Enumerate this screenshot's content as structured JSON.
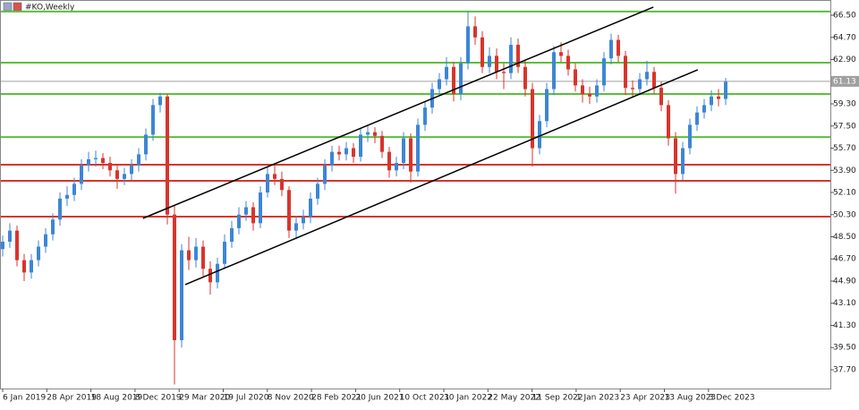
{
  "chart_data": {
    "type": "candlestick",
    "title": "#KO,Weekly",
    "ylim": [
      36.17,
      67.74
    ],
    "yticks": [
      {
        "value": 66.5,
        "label": "66.50"
      },
      {
        "value": 64.7,
        "label": "64.70"
      },
      {
        "value": 62.9,
        "label": "62.90"
      },
      {
        "value": 59.3,
        "label": "59.30"
      },
      {
        "value": 57.5,
        "label": "57.50"
      },
      {
        "value": 55.7,
        "label": "55.70"
      },
      {
        "value": 53.9,
        "label": "53.90"
      },
      {
        "value": 52.1,
        "label": "52.10"
      },
      {
        "value": 50.3,
        "label": "50.30"
      },
      {
        "value": 48.5,
        "label": "48.50"
      },
      {
        "value": 46.7,
        "label": "46.70"
      },
      {
        "value": 44.9,
        "label": "44.90"
      },
      {
        "value": 43.1,
        "label": "43.10"
      },
      {
        "value": 41.3,
        "label": "41.30"
      },
      {
        "value": 39.5,
        "label": "39.50"
      },
      {
        "value": 37.7,
        "label": "37.70"
      }
    ],
    "current_price": 61.13,
    "categories": [
      "6 Jan 2019",
      "28 Apr 2019",
      "18 Aug 2019",
      "8 Dec 2019",
      "29 Mar 2020",
      "19 Jul 2020",
      "8 Nov 2020",
      "28 Feb 2021",
      "20 Jun 2021",
      "10 Oct 2021",
      "30 Jan 2022",
      "22 May 2022",
      "11 Sep 2022",
      "1 Jan 2023",
      "23 Apr 2023",
      "13 Aug 2023",
      "3 Dec 2023"
    ],
    "up_color": "#3d86d6",
    "down_color": "#d8352c",
    "candles": [
      [
        47.5,
        48.6,
        46.9,
        48.1
      ],
      [
        48.1,
        49.6,
        47.6,
        49.0
      ],
      [
        49.0,
        49.4,
        46.1,
        46.6
      ],
      [
        46.6,
        47.1,
        44.9,
        45.6
      ],
      [
        45.6,
        47.1,
        45.1,
        46.6
      ],
      [
        46.6,
        48.2,
        46.1,
        47.7
      ],
      [
        47.7,
        49.2,
        47.2,
        48.7
      ],
      [
        48.7,
        50.4,
        48.2,
        49.9
      ],
      [
        49.9,
        52.1,
        49.4,
        51.6
      ],
      [
        51.6,
        52.6,
        51.0,
        51.9
      ],
      [
        51.9,
        53.3,
        51.4,
        52.8
      ],
      [
        52.8,
        54.8,
        52.3,
        54.3
      ],
      [
        54.3,
        55.4,
        53.8,
        54.8
      ],
      [
        54.8,
        55.5,
        54.2,
        54.9
      ],
      [
        54.9,
        55.3,
        54.0,
        54.5
      ],
      [
        54.5,
        55.0,
        53.4,
        53.9
      ],
      [
        53.9,
        54.3,
        52.4,
        53.2
      ],
      [
        53.2,
        54.1,
        52.7,
        53.6
      ],
      [
        53.6,
        54.8,
        53.1,
        54.3
      ],
      [
        54.3,
        55.7,
        53.8,
        55.2
      ],
      [
        55.2,
        57.3,
        54.7,
        56.8
      ],
      [
        56.8,
        59.7,
        56.3,
        59.2
      ],
      [
        59.2,
        60.2,
        58.6,
        59.9
      ],
      [
        59.9,
        60.1,
        49.5,
        50.3
      ],
      [
        50.3,
        51.0,
        36.5,
        40.1
      ],
      [
        40.1,
        47.9,
        39.5,
        47.4
      ],
      [
        47.4,
        48.5,
        45.8,
        46.6
      ],
      [
        46.6,
        48.4,
        46.0,
        47.7
      ],
      [
        47.7,
        48.2,
        45.3,
        45.9
      ],
      [
        45.9,
        46.5,
        43.8,
        44.8
      ],
      [
        44.8,
        46.8,
        44.3,
        46.3
      ],
      [
        46.3,
        48.7,
        45.9,
        48.1
      ],
      [
        48.1,
        49.8,
        47.6,
        49.2
      ],
      [
        49.2,
        50.9,
        48.7,
        50.3
      ],
      [
        50.3,
        51.4,
        49.8,
        50.9
      ],
      [
        50.9,
        51.3,
        49.0,
        49.6
      ],
      [
        49.6,
        52.6,
        49.2,
        52.1
      ],
      [
        52.1,
        54.2,
        51.7,
        53.6
      ],
      [
        53.6,
        54.4,
        52.7,
        53.2
      ],
      [
        53.2,
        53.8,
        51.8,
        52.3
      ],
      [
        52.3,
        52.6,
        48.4,
        49.0
      ],
      [
        49.0,
        50.2,
        48.3,
        49.6
      ],
      [
        49.6,
        50.7,
        49.1,
        50.1
      ],
      [
        50.1,
        52.1,
        49.6,
        51.6
      ],
      [
        51.6,
        53.3,
        51.1,
        52.8
      ],
      [
        52.8,
        54.8,
        52.3,
        54.3
      ],
      [
        54.3,
        55.9,
        53.8,
        55.4
      ],
      [
        55.4,
        55.9,
        54.7,
        55.2
      ],
      [
        55.2,
        56.2,
        54.7,
        55.7
      ],
      [
        55.7,
        56.1,
        54.5,
        55.0
      ],
      [
        55.0,
        57.3,
        54.6,
        56.8
      ],
      [
        56.8,
        57.5,
        56.2,
        57.0
      ],
      [
        57.0,
        57.4,
        56.1,
        56.7
      ],
      [
        56.7,
        57.1,
        54.9,
        55.4
      ],
      [
        55.4,
        55.8,
        53.3,
        53.9
      ],
      [
        53.9,
        55.0,
        53.4,
        54.5
      ],
      [
        54.5,
        57.0,
        54.0,
        56.5
      ],
      [
        56.5,
        56.9,
        52.9,
        53.8
      ],
      [
        53.8,
        58.1,
        53.4,
        57.6
      ],
      [
        57.6,
        59.5,
        57.1,
        59.0
      ],
      [
        59.0,
        61.0,
        58.5,
        60.5
      ],
      [
        60.5,
        61.8,
        60.0,
        61.3
      ],
      [
        61.3,
        63.1,
        60.8,
        62.3
      ],
      [
        62.3,
        62.7,
        59.5,
        60.1
      ],
      [
        60.1,
        63.1,
        59.6,
        62.6
      ],
      [
        62.6,
        66.8,
        62.1,
        65.6
      ],
      [
        65.6,
        66.4,
        64.1,
        64.7
      ],
      [
        64.7,
        65.2,
        61.8,
        62.3
      ],
      [
        62.3,
        63.9,
        61.8,
        63.2
      ],
      [
        63.2,
        63.8,
        61.3,
        61.9
      ],
      [
        61.9,
        62.6,
        60.5,
        61.8
      ],
      [
        61.8,
        64.7,
        61.3,
        64.1
      ],
      [
        64.1,
        64.6,
        61.8,
        62.3
      ],
      [
        62.3,
        62.8,
        59.9,
        60.5
      ],
      [
        60.5,
        61.0,
        54.2,
        55.7
      ],
      [
        55.7,
        58.4,
        55.2,
        57.9
      ],
      [
        57.9,
        61.0,
        57.4,
        60.5
      ],
      [
        60.5,
        64.0,
        60.0,
        63.5
      ],
      [
        63.5,
        64.3,
        62.7,
        63.2
      ],
      [
        63.2,
        63.7,
        61.6,
        62.1
      ],
      [
        62.1,
        62.6,
        60.3,
        60.8
      ],
      [
        60.8,
        61.3,
        59.4,
        60.1
      ],
      [
        60.1,
        60.7,
        59.3,
        59.9
      ],
      [
        59.9,
        61.3,
        59.4,
        60.8
      ],
      [
        60.8,
        63.5,
        60.3,
        63.0
      ],
      [
        63.0,
        65.0,
        62.5,
        64.5
      ],
      [
        64.5,
        64.9,
        62.7,
        63.2
      ],
      [
        63.2,
        63.6,
        60.0,
        60.6
      ],
      [
        60.6,
        61.2,
        59.8,
        60.5
      ],
      [
        60.5,
        61.8,
        60.0,
        61.3
      ],
      [
        61.3,
        62.8,
        60.8,
        61.9
      ],
      [
        61.9,
        62.3,
        60.1,
        60.6
      ],
      [
        60.6,
        61.1,
        58.7,
        59.2
      ],
      [
        59.2,
        59.6,
        55.9,
        56.5
      ],
      [
        56.5,
        57.0,
        52.0,
        53.6
      ],
      [
        53.6,
        56.2,
        53.1,
        55.7
      ],
      [
        55.7,
        58.1,
        55.2,
        57.6
      ],
      [
        57.6,
        59.1,
        57.1,
        58.6
      ],
      [
        58.6,
        59.7,
        58.1,
        59.2
      ],
      [
        59.2,
        60.4,
        58.7,
        59.9
      ],
      [
        59.9,
        60.5,
        59.1,
        59.7
      ],
      [
        59.7,
        61.4,
        59.2,
        61.1
      ]
    ],
    "levels": [
      {
        "value": 66.8,
        "color": "#5cbf3c"
      },
      {
        "value": 62.65,
        "color": "#5cbf3c"
      },
      {
        "value": 60.1,
        "color": "#5cbf3c"
      },
      {
        "value": 56.6,
        "color": "#5cbf3c"
      },
      {
        "value": 54.36,
        "color": "#d8352c"
      },
      {
        "value": 53.05,
        "color": "#d8352c"
      },
      {
        "value": 50.14,
        "color": "#d8352c"
      }
    ],
    "trendlines": [
      {
        "start": 50.0,
        "end": 67.16,
        "color": "#000000"
      },
      {
        "start": 44.61,
        "end": 62.07,
        "color": "#000000"
      }
    ]
  }
}
